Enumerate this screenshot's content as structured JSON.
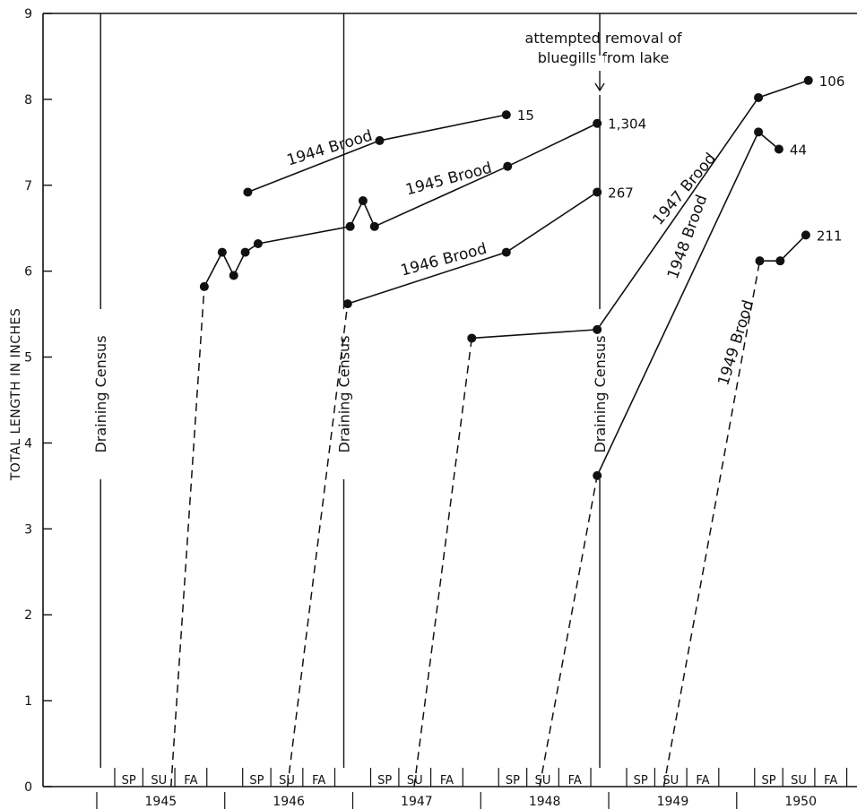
{
  "chart_data": {
    "type": "line",
    "ylabel": "TOTAL LENGTH IN INCHES",
    "ylim": [
      0,
      9
    ],
    "yticks": [
      "0",
      "1",
      "2",
      "3",
      "4",
      "5",
      "6",
      "7",
      "8",
      "9"
    ],
    "seasons": [
      {
        "label": "SP",
        "start": 1945.16,
        "end": 1945.38
      },
      {
        "label": "SU",
        "start": 1945.38,
        "end": 1945.63
      },
      {
        "label": "FA",
        "start": 1945.63,
        "end": 1945.88
      },
      {
        "label": "SP",
        "start": 1946.16,
        "end": 1946.38
      },
      {
        "label": "SU",
        "start": 1946.38,
        "end": 1946.63
      },
      {
        "label": "FA",
        "start": 1946.63,
        "end": 1946.88
      },
      {
        "label": "SP",
        "start": 1947.16,
        "end": 1947.38
      },
      {
        "label": "SU",
        "start": 1947.38,
        "end": 1947.63
      },
      {
        "label": "FA",
        "start": 1947.63,
        "end": 1947.88
      },
      {
        "label": "SP",
        "start": 1948.16,
        "end": 1948.38
      },
      {
        "label": "SU",
        "start": 1948.38,
        "end": 1948.63
      },
      {
        "label": "FA",
        "start": 1948.63,
        "end": 1948.88
      },
      {
        "label": "SP",
        "start": 1949.16,
        "end": 1949.38
      },
      {
        "label": "SU",
        "start": 1949.38,
        "end": 1949.63
      },
      {
        "label": "FA",
        "start": 1949.63,
        "end": 1949.88
      },
      {
        "label": "SP",
        "start": 1950.16,
        "end": 1950.38
      },
      {
        "label": "SU",
        "start": 1950.38,
        "end": 1950.63
      },
      {
        "label": "FA",
        "start": 1950.63,
        "end": 1950.88
      }
    ],
    "season_dividers": [
      1945.16,
      1945.38,
      1945.63,
      1945.88,
      1946.16,
      1946.38,
      1946.63,
      1946.88,
      1947.16,
      1947.38,
      1947.63,
      1947.88,
      1948.16,
      1948.38,
      1948.63,
      1948.88,
      1949.16,
      1949.38,
      1949.63,
      1949.88,
      1950.16,
      1950.38,
      1950.63,
      1950.88
    ],
    "years": [
      {
        "label": "1945",
        "at": 1945.52
      },
      {
        "label": "1946",
        "at": 1946.52
      },
      {
        "label": "1947",
        "at": 1947.52
      },
      {
        "label": "1948",
        "at": 1948.52
      },
      {
        "label": "1949",
        "at": 1949.52
      },
      {
        "label": "1950",
        "at": 1950.52
      }
    ],
    "events": [
      {
        "label": "Draining Census",
        "at": 1945.05
      },
      {
        "label": "Draining Census",
        "at": 1946.95
      },
      {
        "label": "Draining Census",
        "at": 1948.95
      }
    ],
    "annotation": {
      "lines": [
        "attempted removal of",
        "bluegills from lake"
      ],
      "at": 1948.95,
      "y": 7.72
    },
    "series": [
      {
        "name": "1944 Brood",
        "values": [
          [
            1946.2,
            6.92
          ],
          [
            1947.23,
            7.52
          ],
          [
            1948.22,
            7.82
          ]
        ],
        "count": "15",
        "label_rot": -17
      },
      {
        "name": "1945 Brood",
        "start": [
          1945.6,
          0
        ],
        "values": [
          [
            1945.86,
            5.82
          ],
          [
            1946.0,
            6.22
          ],
          [
            1946.09,
            5.95
          ],
          [
            1946.18,
            6.22
          ],
          [
            1946.28,
            6.32
          ],
          [
            1947.0,
            6.52
          ],
          [
            1947.1,
            6.82
          ],
          [
            1947.19,
            6.52
          ],
          [
            1948.23,
            7.22
          ],
          [
            1948.93,
            7.72
          ]
        ],
        "count": "1,304",
        "label_rot": -15
      },
      {
        "name": "1946 Brood",
        "start": [
          1946.51,
          0
        ],
        "values": [
          [
            1946.98,
            5.62
          ],
          [
            1948.22,
            6.22
          ],
          [
            1948.93,
            6.92
          ]
        ],
        "count": "267",
        "label_rot": -15
      },
      {
        "name": "1947 Brood",
        "start": [
          1947.5,
          0
        ],
        "values": [
          [
            1947.95,
            5.22
          ],
          [
            1948.93,
            5.32
          ],
          [
            1950.19,
            8.02
          ],
          [
            1950.58,
            8.22
          ]
        ],
        "count": "106",
        "label_rot": -50
      },
      {
        "name": "1948 Brood",
        "start": [
          1948.48,
          0
        ],
        "values": [
          [
            1948.93,
            3.62
          ],
          [
            1950.19,
            7.62
          ],
          [
            1950.35,
            7.42
          ]
        ],
        "count": "44",
        "label_rot": -70
      },
      {
        "name": "1949 Brood",
        "start": [
          1949.45,
          0
        ],
        "values": [
          [
            1950.2,
            6.12
          ],
          [
            1950.36,
            6.12
          ],
          [
            1950.56,
            6.42
          ]
        ],
        "count": "211",
        "label_rot": -73
      }
    ]
  }
}
